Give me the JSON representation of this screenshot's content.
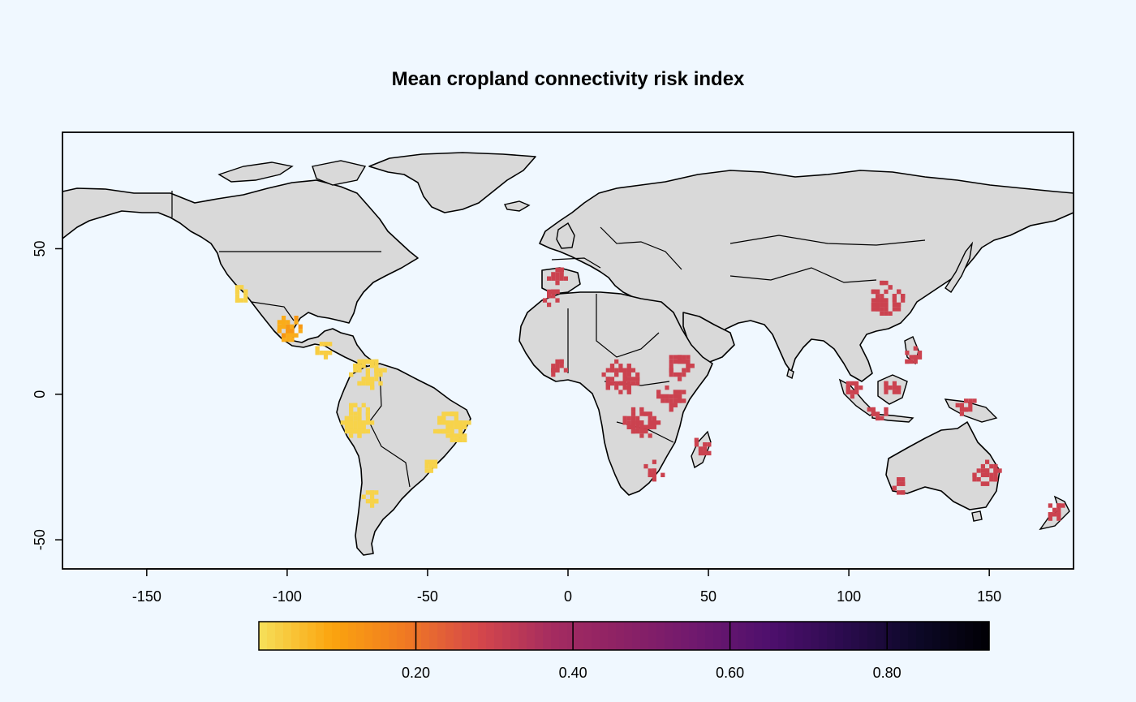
{
  "chart_data": {
    "type": "heatmap",
    "title": "Mean cropland connectivity risk index",
    "xlim": [
      -180,
      180
    ],
    "ylim": [
      -60,
      90
    ],
    "x_ticks": [
      -150,
      -100,
      -50,
      0,
      50,
      100,
      150
    ],
    "y_ticks": [
      -50,
      0,
      50
    ],
    "grid": false,
    "legend": {
      "position": "bottom",
      "range": [
        0,
        0.93
      ],
      "ticks": [
        0.2,
        0.4,
        0.6,
        0.8
      ],
      "tick_labels": [
        "0.20",
        "0.40",
        "0.60",
        "0.80"
      ],
      "palette": [
        "#f6e05a",
        "#fba40e",
        "#f07a22",
        "#d6484a",
        "#a52c60",
        "#8c2165",
        "#6f196e",
        "#4e0f6d",
        "#2b0b4e",
        "#0d0828",
        "#000004"
      ]
    },
    "regions": [
      {
        "name": "Mexico",
        "lon": -100,
        "lat": 22,
        "value": 0.08
      },
      {
        "name": "Central America",
        "lon": -88,
        "lat": 15,
        "value": 0.03
      },
      {
        "name": "SW United States",
        "lon": -117,
        "lat": 34,
        "value": 0.02
      },
      {
        "name": "Colombia / Venezuela",
        "lon": -72,
        "lat": 6,
        "value": 0.02
      },
      {
        "name": "Andes",
        "lon": -76,
        "lat": -10,
        "value": 0.02
      },
      {
        "name": "Brazil East",
        "lon": -42,
        "lat": -12,
        "value": 0.02
      },
      {
        "name": "Brazil South",
        "lon": -50,
        "lat": -25,
        "value": 0.02
      },
      {
        "name": "Chile",
        "lon": -71,
        "lat": -36,
        "value": 0.02
      },
      {
        "name": "Iberia",
        "lon": -5,
        "lat": 40,
        "value": 0.3
      },
      {
        "name": "Morocco",
        "lon": -6,
        "lat": 33,
        "value": 0.3
      },
      {
        "name": "West Africa",
        "lon": -4,
        "lat": 8,
        "value": 0.3
      },
      {
        "name": "Central Africa",
        "lon": 18,
        "lat": 5,
        "value": 0.3
      },
      {
        "name": "Congo / Zambia",
        "lon": 25,
        "lat": -10,
        "value": 0.3
      },
      {
        "name": "Ethiopia",
        "lon": 39,
        "lat": 9,
        "value": 0.3
      },
      {
        "name": "East Africa",
        "lon": 36,
        "lat": -2,
        "value": 0.3
      },
      {
        "name": "South Africa",
        "lon": 30,
        "lat": -27,
        "value": 0.3
      },
      {
        "name": "Madagascar",
        "lon": 47,
        "lat": -19,
        "value": 0.3
      },
      {
        "name": "China East",
        "lon": 113,
        "lat": 32,
        "value": 0.3
      },
      {
        "name": "Philippines",
        "lon": 122,
        "lat": 12,
        "value": 0.3
      },
      {
        "name": "Borneo",
        "lon": 114,
        "lat": 1,
        "value": 0.3
      },
      {
        "name": "Sumatra",
        "lon": 101,
        "lat": 1,
        "value": 0.3
      },
      {
        "name": "Java",
        "lon": 110,
        "lat": -7,
        "value": 0.3
      },
      {
        "name": "New Guinea",
        "lon": 141,
        "lat": -5,
        "value": 0.3
      },
      {
        "name": "East Australia",
        "lon": 148,
        "lat": -28,
        "value": 0.3
      },
      {
        "name": "SW Australia",
        "lon": 117,
        "lat": -33,
        "value": 0.3
      },
      {
        "name": "New Zealand",
        "lon": 173,
        "lat": -41,
        "value": 0.3
      }
    ]
  }
}
